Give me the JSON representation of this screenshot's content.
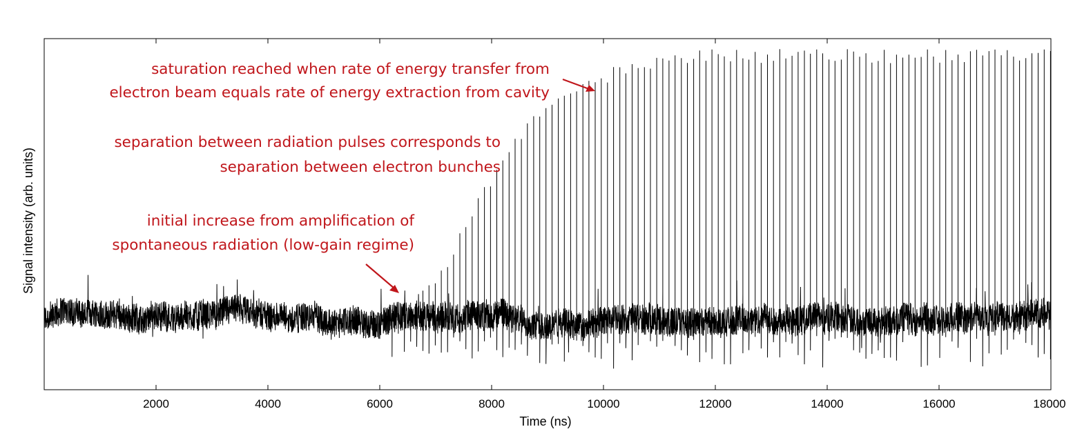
{
  "chart_data": {
    "type": "line",
    "title": "",
    "xlabel": "Time (ns)",
    "ylabel": "Signal intensity (arb. units)",
    "xlim": [
      0,
      18000
    ],
    "ylim": [
      0,
      1
    ],
    "xticks": [
      2000,
      4000,
      6000,
      8000,
      10000,
      12000,
      14000,
      16000,
      18000
    ],
    "yticks_shown": false,
    "grid": false,
    "legend": "none",
    "series": [
      {
        "color": "#000000",
        "description_points": {
          "baseline_level": 0.2,
          "noise_amplitude": 0.06,
          "pulse_spacing_ns": 110,
          "pulse_onset_ns": 6000,
          "pulse_peaks": [
            {
              "x": 6000,
              "y": 0.2
            },
            {
              "x": 6500,
              "y": 0.24
            },
            {
              "x": 7000,
              "y": 0.32
            },
            {
              "x": 7500,
              "y": 0.47
            },
            {
              "x": 8000,
              "y": 0.62
            },
            {
              "x": 8500,
              "y": 0.74
            },
            {
              "x": 9000,
              "y": 0.82
            },
            {
              "x": 9500,
              "y": 0.88
            },
            {
              "x": 10000,
              "y": 0.91
            },
            {
              "x": 10500,
              "y": 0.94
            },
            {
              "x": 11000,
              "y": 0.96
            },
            {
              "x": 12000,
              "y": 0.97
            },
            {
              "x": 14000,
              "y": 0.97
            },
            {
              "x": 16000,
              "y": 0.97
            },
            {
              "x": 18000,
              "y": 0.97
            }
          ]
        }
      }
    ],
    "annotations": [
      {
        "lines": [
          "saturation reached when rate of energy transfer from",
          "electron beam equals rate of energy extraction from cavity"
        ],
        "color": "#c0161b",
        "arrow": true
      },
      {
        "lines": [
          "separation between radiation pulses corresponds to",
          "separation between electron bunches"
        ],
        "color": "#c0161b",
        "arrow": false
      },
      {
        "lines": [
          "initial increase from amplification of",
          "spontaneous radiation (low-gain regime)"
        ],
        "color": "#c0161b",
        "arrow": true
      }
    ]
  }
}
